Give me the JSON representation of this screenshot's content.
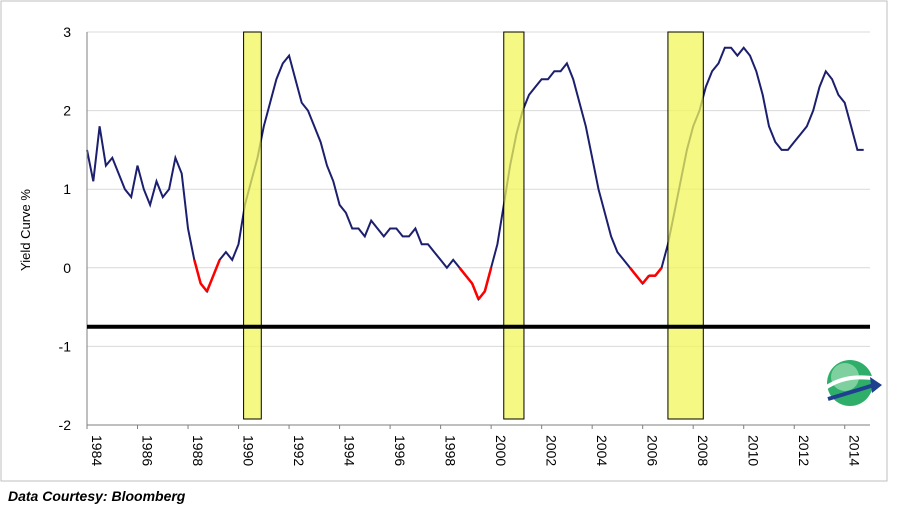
{
  "credit": "Data Courtesy: Bloomberg",
  "chart_data": {
    "type": "line",
    "title": "",
    "xlabel": "",
    "ylabel": "Yield Curve %",
    "xlim": [
      1984,
      2015
    ],
    "ylim": [
      -2,
      3
    ],
    "yticks": [
      3,
      2,
      1,
      0,
      -1,
      -2
    ],
    "xticks": [
      "1984",
      "1986",
      "1988",
      "1990",
      "1992",
      "1994",
      "1996",
      "1998",
      "2000",
      "2002",
      "2004",
      "2006",
      "2008",
      "2010",
      "2012",
      "2014"
    ],
    "grid": "horizontal",
    "legend": "none",
    "colors": {
      "line": "#1b1f6e",
      "inverted": "#ff0000",
      "recession": "#f2f75a",
      "reference": "#000000"
    },
    "reference_line": -0.75,
    "recession_bands": [
      [
        1990.2,
        1990.9
      ],
      [
        2000.5,
        2001.3
      ],
      [
        2007.0,
        2008.4
      ]
    ],
    "series": [
      {
        "x": [
          1984.0,
          1984.25,
          1984.5,
          1984.75,
          1985.0,
          1985.25,
          1985.5,
          1985.75,
          1986.0,
          1986.25,
          1986.5,
          1986.75,
          1987.0,
          1987.25,
          1987.5,
          1987.75,
          1988.0,
          1988.25,
          1988.5,
          1988.75,
          1989.0,
          1989.25,
          1989.5,
          1989.75,
          1990.0,
          1990.25,
          1990.5,
          1990.75,
          1991.0,
          1991.25,
          1991.5,
          1991.75,
          1992.0,
          1992.25,
          1992.5,
          1992.75,
          1993.0,
          1993.25,
          1993.5,
          1993.75,
          1994.0,
          1994.25,
          1994.5,
          1994.75,
          1995.0,
          1995.25,
          1995.5,
          1995.75,
          1996.0,
          1996.25,
          1996.5,
          1996.75,
          1997.0,
          1997.25,
          1997.5,
          1997.75,
          1998.0,
          1998.25,
          1998.5,
          1998.75,
          1999.0,
          1999.25,
          1999.5,
          1999.75,
          2000.0,
          2000.25,
          2000.5,
          2000.75,
          2001.0,
          2001.25,
          2001.5,
          2001.75,
          2002.0,
          2002.25,
          2002.5,
          2002.75,
          2003.0,
          2003.25,
          2003.5,
          2003.75,
          2004.0,
          2004.25,
          2004.5,
          2004.75,
          2005.0,
          2005.25,
          2005.5,
          2005.75,
          2006.0,
          2006.25,
          2006.5,
          2006.75,
          2007.0,
          2007.25,
          2007.5,
          2007.75,
          2008.0,
          2008.25,
          2008.5,
          2008.75,
          2009.0,
          2009.25,
          2009.5,
          2009.75,
          2010.0,
          2010.25,
          2010.5,
          2010.75,
          2011.0,
          2011.25,
          2011.5,
          2011.75,
          2012.0,
          2012.25,
          2012.5,
          2012.75,
          2013.0,
          2013.25,
          2013.5,
          2013.75,
          2014.0,
          2014.25,
          2014.5,
          2014.75
        ],
        "y": [
          1.5,
          1.1,
          1.8,
          1.3,
          1.4,
          1.2,
          1.0,
          0.9,
          1.3,
          1.0,
          0.8,
          1.1,
          0.9,
          1.0,
          1.4,
          1.2,
          0.5,
          0.1,
          -0.2,
          -0.3,
          -0.1,
          0.1,
          0.2,
          0.1,
          0.3,
          0.8,
          1.1,
          1.4,
          1.8,
          2.1,
          2.4,
          2.6,
          2.7,
          2.4,
          2.1,
          2.0,
          1.8,
          1.6,
          1.3,
          1.1,
          0.8,
          0.7,
          0.5,
          0.5,
          0.4,
          0.6,
          0.5,
          0.4,
          0.5,
          0.5,
          0.4,
          0.4,
          0.5,
          0.3,
          0.3,
          0.2,
          0.1,
          0.0,
          0.1,
          0.0,
          -0.1,
          -0.2,
          -0.4,
          -0.3,
          0.0,
          0.3,
          0.8,
          1.3,
          1.7,
          2.0,
          2.2,
          2.3,
          2.4,
          2.4,
          2.5,
          2.5,
          2.6,
          2.4,
          2.1,
          1.8,
          1.4,
          1.0,
          0.7,
          0.4,
          0.2,
          0.1,
          0.0,
          -0.1,
          -0.2,
          -0.1,
          -0.1,
          0.0,
          0.3,
          0.7,
          1.1,
          1.5,
          1.8,
          2.0,
          2.3,
          2.5,
          2.6,
          2.8,
          2.8,
          2.7,
          2.8,
          2.7,
          2.5,
          2.2,
          1.8,
          1.6,
          1.5,
          1.5,
          1.6,
          1.7,
          1.8,
          2.0,
          2.3,
          2.5,
          2.4,
          2.2,
          2.1,
          1.8,
          1.5,
          1.5
        ]
      }
    ]
  }
}
